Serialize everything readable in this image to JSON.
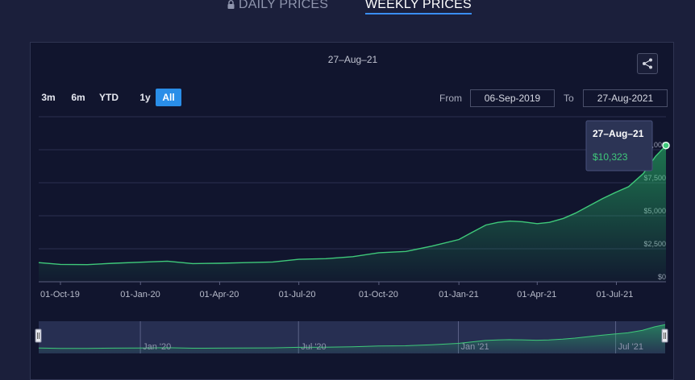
{
  "tabs": {
    "daily_label": "DAILY PRICES",
    "weekly_label": "WEEKLY PRICES",
    "active": "weekly"
  },
  "chart": {
    "title": "27–Aug–21",
    "range_buttons": [
      {
        "label": "3m",
        "active": false
      },
      {
        "label": "6m",
        "active": false
      },
      {
        "label": "YTD",
        "active": false
      },
      {
        "label": "1y",
        "active": false
      },
      {
        "label": "All",
        "active": true
      }
    ],
    "from_label": "From",
    "from_value": "06-Sep-2019",
    "to_label": "To",
    "to_value": "27-Aug-2021",
    "tooltip": {
      "date": "27–Aug–21",
      "value": "$10,323"
    },
    "navigator_labels": [
      "Jan '20",
      "Jul '20",
      "Jan '21",
      "Jul '21"
    ]
  },
  "colors": {
    "background": "#1b1f3b",
    "panel": "#11152e",
    "accent": "#2a8ee8",
    "line": "#3fc97a",
    "tooltip_value": "#3fc97a"
  },
  "chart_data": {
    "type": "area",
    "xlabel": "",
    "ylabel": "",
    "ylim": [
      0,
      12500
    ],
    "x_tick_labels": [
      "01-Oct-19",
      "01-Jan-20",
      "01-Apr-20",
      "01-Jul-20",
      "01-Oct-20",
      "01-Jan-21",
      "01-Apr-21",
      "01-Jul-21"
    ],
    "y_tick_labels": [
      "$0",
      "$2,500",
      "$5,000",
      "$7,500",
      "$10,000"
    ],
    "y_ticks": [
      0,
      2500,
      5000,
      7500,
      10000
    ],
    "grid": true,
    "series": [
      {
        "x": [
          "2019-09-06",
          "2019-10-01",
          "2019-11-01",
          "2019-12-01",
          "2020-01-01",
          "2020-02-01",
          "2020-03-01",
          "2020-04-01",
          "2020-05-01",
          "2020-06-01",
          "2020-07-01",
          "2020-08-01",
          "2020-09-01",
          "2020-10-01",
          "2020-11-01",
          "2020-12-01",
          "2021-01-01",
          "2021-01-15",
          "2021-02-01",
          "2021-02-15",
          "2021-03-01",
          "2021-03-15",
          "2021-04-01",
          "2021-04-15",
          "2021-05-01",
          "2021-05-15",
          "2021-06-01",
          "2021-06-15",
          "2021-07-01",
          "2021-07-15",
          "2021-08-01",
          "2021-08-15",
          "2021-08-27"
        ],
        "values": [
          1450,
          1320,
          1300,
          1400,
          1480,
          1560,
          1380,
          1400,
          1450,
          1500,
          1700,
          1750,
          1900,
          2200,
          2300,
          2700,
          3200,
          3700,
          4300,
          4500,
          4600,
          4550,
          4400,
          4500,
          4800,
          5200,
          5800,
          6300,
          6800,
          7200,
          8200,
          9500,
          10323
        ]
      }
    ]
  }
}
